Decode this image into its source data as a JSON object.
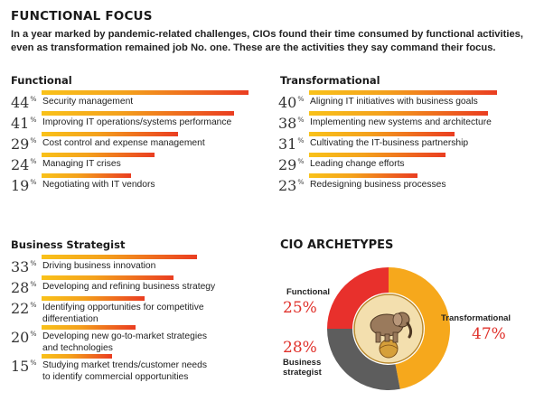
{
  "header": {
    "title": "FUNCTIONAL FOCUS",
    "subtitle": "In a year marked by pandemic-related challenges, CIOs found their time consumed by functional activities, even as transformation remained job No. one. These are the activities they say command their focus."
  },
  "colors": {
    "bar_start": "#f9c21a",
    "bar_end": "#ea3d21",
    "functional_slice": "#e8302c",
    "transformational_slice": "#f6a81c",
    "strategist_slice": "#5d5d5d",
    "pct_red": "#e0312b"
  },
  "chart_data": [
    {
      "type": "bar",
      "title": "Functional",
      "categories": [
        "Security management",
        "Improving IT operations/systems performance",
        "Cost control and expense management",
        "Managing IT crises",
        "Negotiating with IT vendors"
      ],
      "values": [
        44,
        41,
        29,
        24,
        19
      ],
      "value_labels": [
        "44",
        "41",
        "29",
        "24",
        "19"
      ],
      "unit": "%"
    },
    {
      "type": "bar",
      "title": "Transformational",
      "categories": [
        "Aligning IT initiatives with business goals",
        "Implementing new systems and architecture",
        "Cultivating the IT-business partnership",
        "Leading change efforts",
        "Redesigning business processes"
      ],
      "values": [
        40,
        38,
        31,
        29,
        23
      ],
      "value_labels": [
        "40",
        "38",
        "31",
        "29",
        "23"
      ],
      "unit": "%"
    },
    {
      "type": "bar",
      "title": "Business Strategist",
      "categories": [
        "Driving business innovation",
        "Developing and refining business strategy",
        "Identifying opportunities for competitive differentiation",
        "Developing new go-to-market strategies and technologies",
        "Studying market trends/customer needs to identify commercial opportunities"
      ],
      "category_lines": [
        [
          "Driving business innovation"
        ],
        [
          "Developing and refining business strategy"
        ],
        [
          "Identifying opportunities for competitive",
          "differentiation"
        ],
        [
          "Developing new go-to-market strategies",
          "and technologies"
        ],
        [
          "Studying market trends/customer needs",
          "to identify commercial opportunities"
        ]
      ],
      "values": [
        33,
        28,
        22,
        20,
        15
      ],
      "value_labels": [
        "33",
        "28",
        "22",
        "20",
        "15"
      ],
      "unit": "%"
    },
    {
      "type": "pie",
      "title": "CIO ARCHETYPES",
      "slices": [
        {
          "name": "Functional",
          "value": 25,
          "label": "25%",
          "color": "#e8302c"
        },
        {
          "name": "Transformational",
          "value": 47,
          "label": "47%",
          "color": "#f6a81c"
        },
        {
          "name": "Business strategist",
          "name_lines": [
            "Business",
            "strategist"
          ],
          "value": 28,
          "label": "28%",
          "color": "#5d5d5d"
        }
      ]
    }
  ]
}
